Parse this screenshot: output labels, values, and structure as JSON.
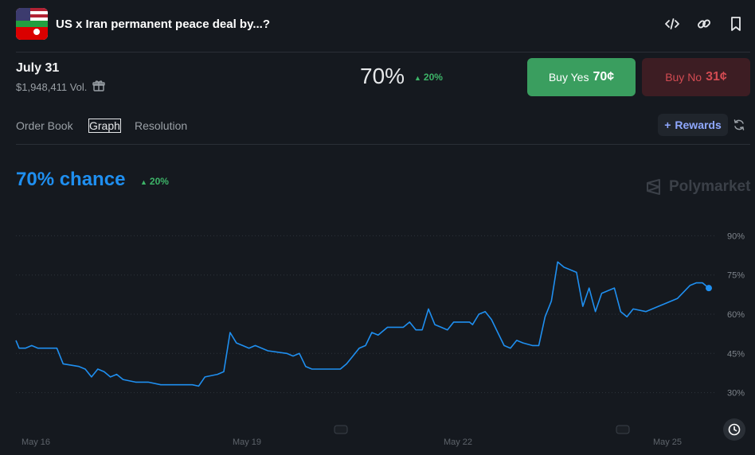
{
  "header": {
    "title": "US x Iran permanent peace deal by...?",
    "icons": [
      "embed-icon",
      "link-icon",
      "bookmark-icon"
    ]
  },
  "market": {
    "date": "July 31",
    "volume": "$1,948,411 Vol.",
    "probability": "70%",
    "change": "20%",
    "buy_yes_label": "Buy Yes",
    "buy_yes_price": "70¢",
    "buy_no_label": "Buy No",
    "buy_no_price": "31¢"
  },
  "tabs": [
    {
      "label": "Order Book",
      "active": false
    },
    {
      "label": "Graph",
      "active": true
    },
    {
      "label": "Resolution",
      "active": false
    }
  ],
  "rewards_label": "Rewards",
  "graph": {
    "chance_text": "70% chance",
    "change": "20%",
    "watermark": "Polymarket"
  },
  "colors": {
    "line": "#1f8ff0",
    "positive": "#3db468",
    "yes": "#3a9e5f",
    "no": "#d24b52"
  },
  "chart_data": {
    "type": "line",
    "yticks": [
      "90%",
      "75%",
      "60%",
      "45%",
      "30%"
    ],
    "xticks": [
      "May 16",
      "May 19",
      "May 22",
      "May 25"
    ],
    "ylim": [
      25,
      95
    ],
    "grid": true,
    "series": [
      {
        "values": [
          [
            0,
            50
          ],
          [
            1,
            47
          ],
          [
            3,
            47
          ],
          [
            5,
            48
          ],
          [
            7,
            47
          ],
          [
            11,
            47
          ],
          [
            13,
            47
          ],
          [
            15,
            41
          ],
          [
            20,
            40
          ],
          [
            22,
            39
          ],
          [
            24,
            36
          ],
          [
            26,
            39
          ],
          [
            28,
            38
          ],
          [
            30,
            36
          ],
          [
            32,
            37
          ],
          [
            34,
            35
          ],
          [
            38,
            34
          ],
          [
            42,
            34
          ],
          [
            46,
            33
          ],
          [
            52,
            33
          ],
          [
            56,
            33
          ],
          [
            58,
            32.5
          ],
          [
            60,
            36
          ],
          [
            64,
            37
          ],
          [
            66,
            38
          ],
          [
            68,
            53
          ],
          [
            70,
            49
          ],
          [
            72,
            48
          ],
          [
            74,
            47
          ],
          [
            76,
            48
          ],
          [
            80,
            46
          ],
          [
            86,
            45
          ],
          [
            88,
            44
          ],
          [
            90,
            45
          ],
          [
            92,
            40
          ],
          [
            94,
            39
          ],
          [
            100,
            39
          ],
          [
            103,
            39
          ],
          [
            105,
            41
          ],
          [
            107,
            44
          ],
          [
            109,
            47
          ],
          [
            111,
            48
          ],
          [
            113,
            53
          ],
          [
            115,
            52
          ],
          [
            118,
            55
          ],
          [
            123,
            55
          ],
          [
            125,
            57
          ],
          [
            127,
            54
          ],
          [
            129,
            54
          ],
          [
            131,
            62
          ],
          [
            133,
            56
          ],
          [
            135,
            55
          ],
          [
            137,
            54
          ],
          [
            139,
            57
          ],
          [
            144,
            57
          ],
          [
            145,
            56
          ],
          [
            147,
            60
          ],
          [
            149,
            61
          ],
          [
            151,
            58
          ],
          [
            153,
            53
          ],
          [
            155,
            48
          ],
          [
            157,
            47
          ],
          [
            159,
            50
          ],
          [
            161,
            49
          ],
          [
            164,
            48
          ],
          [
            166,
            48
          ],
          [
            168,
            59
          ],
          [
            170,
            65
          ],
          [
            172,
            80
          ],
          [
            174,
            78
          ],
          [
            176,
            77
          ],
          [
            178,
            76
          ],
          [
            180,
            63
          ],
          [
            182,
            70
          ],
          [
            184,
            61
          ],
          [
            186,
            68
          ],
          [
            188,
            69
          ],
          [
            190,
            70
          ],
          [
            192,
            61
          ],
          [
            194,
            59
          ],
          [
            196,
            62
          ],
          [
            200,
            61
          ],
          [
            204,
            63
          ],
          [
            206,
            64
          ],
          [
            210,
            66
          ],
          [
            214,
            71
          ],
          [
            216,
            72
          ],
          [
            218,
            72
          ],
          [
            220,
            70
          ]
        ]
      }
    ]
  }
}
